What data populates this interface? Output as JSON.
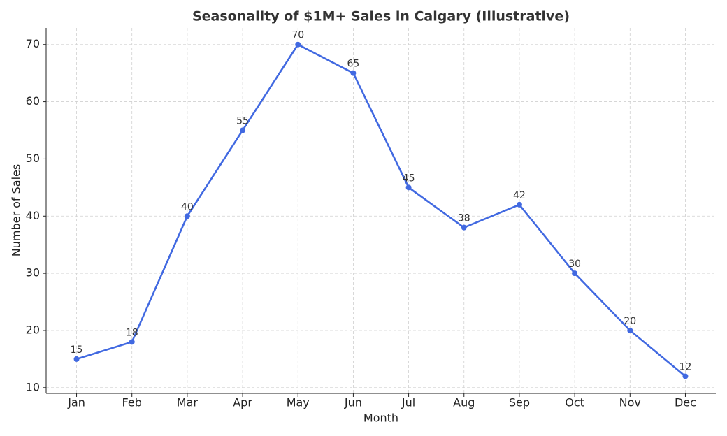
{
  "chart_data": {
    "type": "line",
    "title": "Seasonality of $1M+ Sales in Calgary (Illustrative)",
    "x_label": "Month",
    "y_label": "Number of Sales",
    "categories": [
      "Jan",
      "Feb",
      "Mar",
      "Apr",
      "May",
      "Jun",
      "Jul",
      "Aug",
      "Sep",
      "Oct",
      "Nov",
      "Dec"
    ],
    "series": [
      {
        "name": "Sales",
        "color": "#4169e1",
        "values": [
          15,
          18,
          40,
          55,
          70,
          65,
          45,
          38,
          42,
          30,
          20,
          12
        ]
      }
    ],
    "ylim": [
      9,
      72.9
    ],
    "yticks": [
      10,
      20,
      30,
      40,
      50,
      60,
      70
    ],
    "grid": true
  }
}
